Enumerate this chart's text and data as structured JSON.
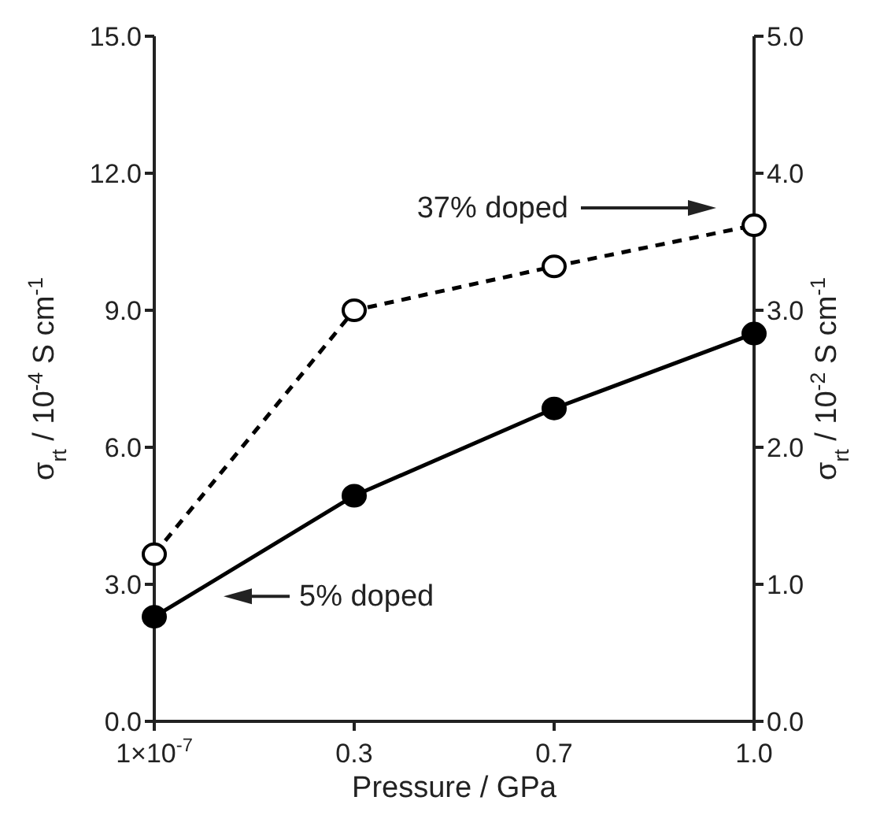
{
  "chart_data": {
    "type": "line",
    "xlabel": "Pressure / GPa",
    "ylabel": "σ$_{rt}$ / 10$^{-4}$ S cm$^{-1}$",
    "y2label": "σ$_{rt}$ / 10$^{-2}$ S cm$^{-1}$",
    "categories": [
      "1×10$^{-7}$",
      "0.3",
      "0.7",
      "1.0"
    ],
    "series": [
      {
        "name": "5% doped",
        "color": "#000000",
        "values": [
          2.29,
          4.94,
          6.85,
          8.49
        ],
        "line_style": "solid",
        "marker": "circle"
      },
      {
        "name": "37% doped",
        "color": "#000000",
        "values": [
          1.22,
          3.0,
          3.32,
          3.62
        ],
        "axis": "y2",
        "line_style": "dashed",
        "marker": "circle"
      }
    ],
    "ylim": [
      0,
      15
    ],
    "yticks": [
      {
        "value": 0,
        "label": "0.0"
      },
      {
        "value": 3,
        "label": "3.0"
      },
      {
        "value": 6,
        "label": "6.0"
      },
      {
        "value": 9,
        "label": "9.0"
      },
      {
        "value": 12,
        "label": "12.0"
      },
      {
        "value": 15,
        "label": "15.0"
      }
    ],
    "y2lim": [
      0,
      5
    ],
    "y2ticks": [
      {
        "value": 0,
        "label": "0.0"
      },
      {
        "value": 1,
        "label": "1.0"
      },
      {
        "value": 2,
        "label": "2.0"
      },
      {
        "value": 3,
        "label": "3.0"
      },
      {
        "value": 4,
        "label": "4.0"
      },
      {
        "value": 5,
        "label": "5.0"
      }
    ],
    "grid": false,
    "legend": false
  }
}
